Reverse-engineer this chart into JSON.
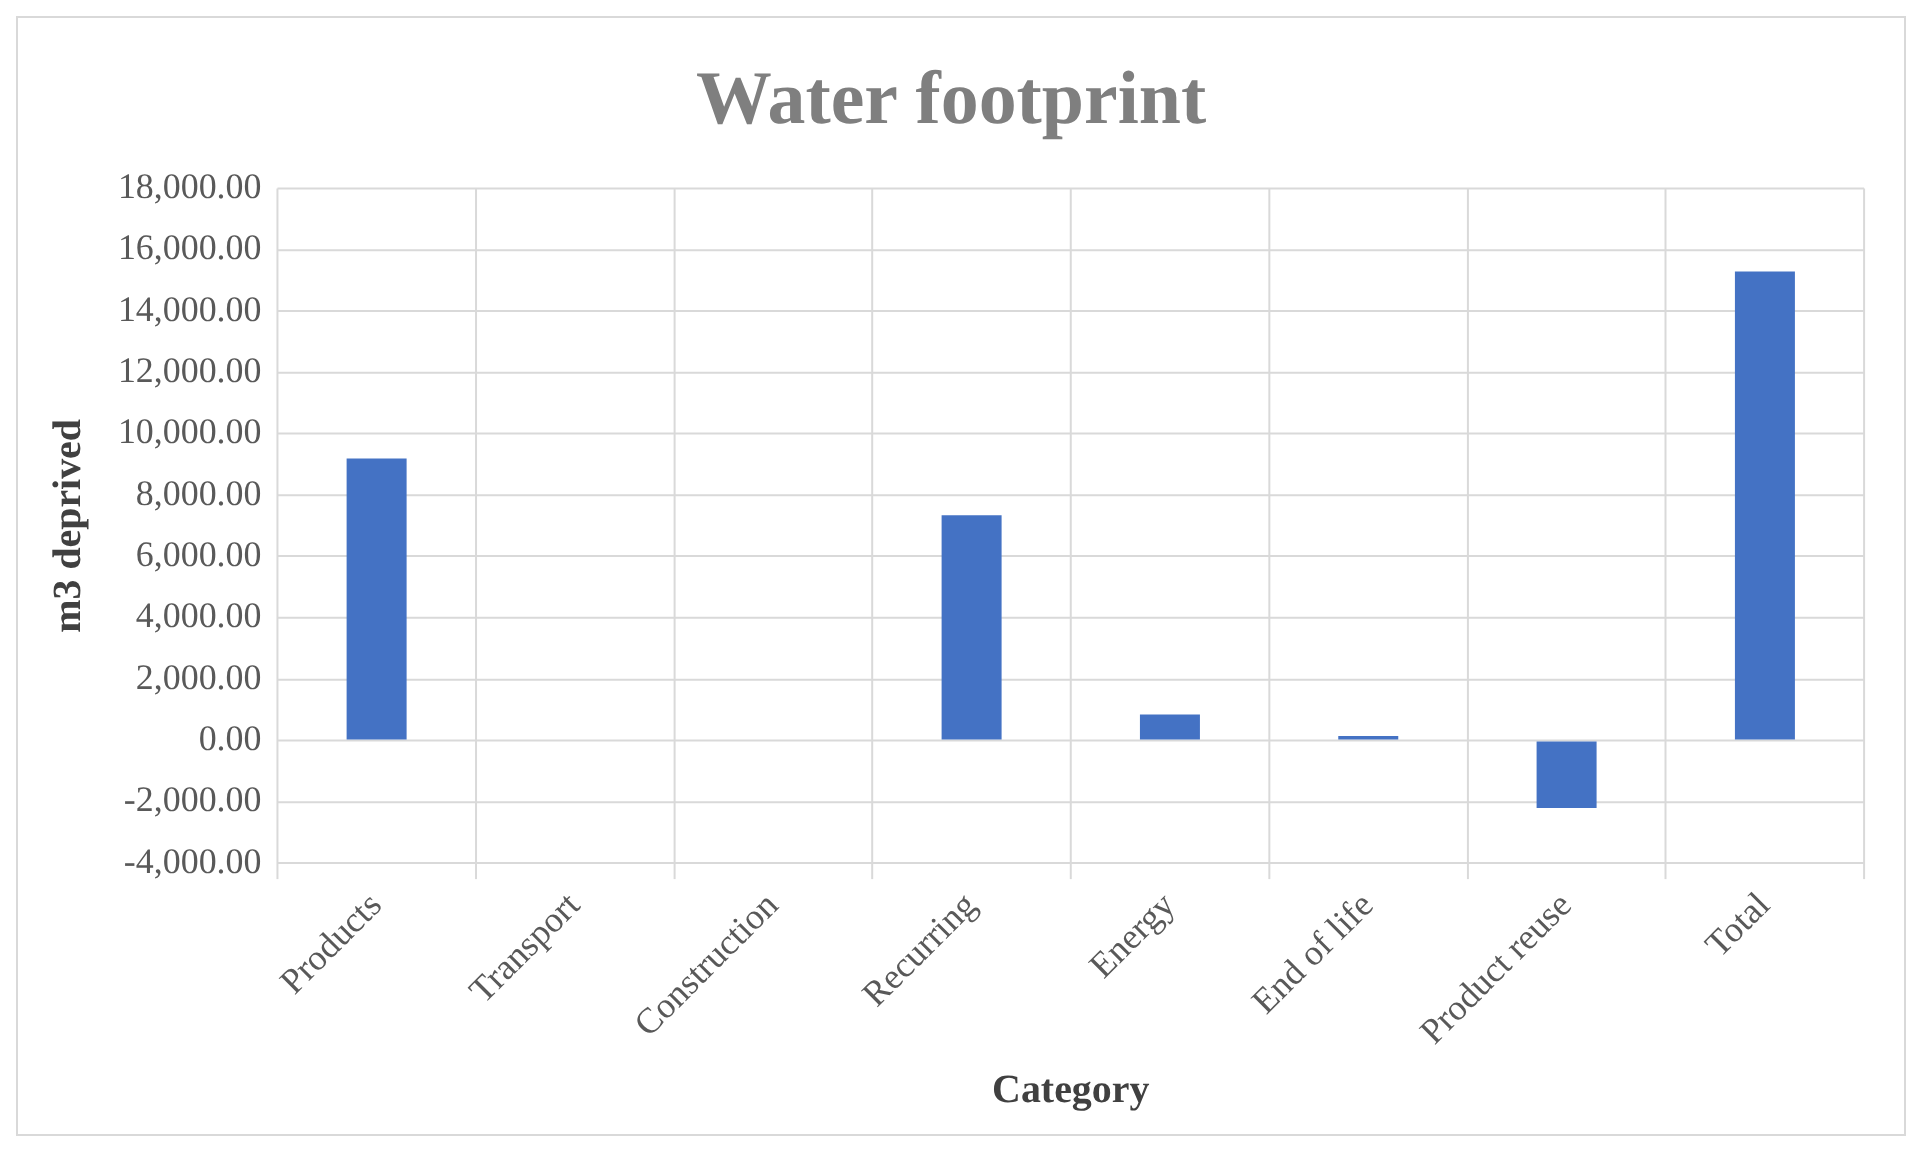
{
  "chart_data": {
    "type": "bar",
    "title": "Water footprint",
    "xlabel": "Category",
    "ylabel": "m3 deprived",
    "categories": [
      "Products",
      "Transport",
      "Construction",
      "Recurring",
      "Energy",
      "End of life",
      "Product reuse",
      "Total"
    ],
    "values": [
      9200,
      0,
      0,
      7350,
      850,
      150,
      -2200,
      15300
    ],
    "color": "#4472c4",
    "ylim": [
      -4000,
      18000
    ],
    "yticks": [
      {
        "value": -4000,
        "label": "-4,000.00"
      },
      {
        "value": -2000,
        "label": "-2,000.00"
      },
      {
        "value": 0,
        "label": "0.00"
      },
      {
        "value": 2000,
        "label": "2,000.00"
      },
      {
        "value": 4000,
        "label": "4,000.00"
      },
      {
        "value": 6000,
        "label": "6,000.00"
      },
      {
        "value": 8000,
        "label": "8,000.00"
      },
      {
        "value": 10000,
        "label": "10,000.00"
      },
      {
        "value": 12000,
        "label": "12,000.00"
      },
      {
        "value": 14000,
        "label": "14,000.00"
      },
      {
        "value": 16000,
        "label": "16,000.00"
      },
      {
        "value": 18000,
        "label": "18,000.00"
      }
    ],
    "grid": true
  }
}
